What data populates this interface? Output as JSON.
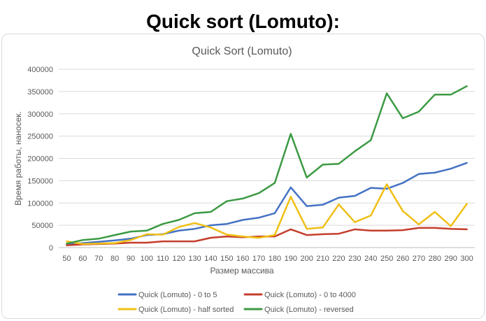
{
  "page": {
    "heading": "Quick sort (Lomuto):"
  },
  "chart_data": {
    "type": "line",
    "title": "Quick Sort (Lomuto)",
    "xlabel": "Размер массива",
    "ylabel": "Время работы, наносек.",
    "ylim": [
      0,
      400000
    ],
    "yticks": [
      "0",
      "50000",
      "100000",
      "150000",
      "200000",
      "250000",
      "300000",
      "350000",
      "400000"
    ],
    "grid": true,
    "legend_position": "bottom",
    "categories": [
      "50",
      "60",
      "70",
      "80",
      "90",
      "100",
      "110",
      "120",
      "130",
      "140",
      "150",
      "160",
      "170",
      "180",
      "190",
      "200",
      "210",
      "220",
      "230",
      "240",
      "250",
      "260",
      "270",
      "280",
      "290",
      "300"
    ],
    "series": [
      {
        "name": "Quick (Lomuto) - 0 to 5",
        "color": "#4472c4",
        "values": [
          8000,
          10000,
          13000,
          16000,
          20000,
          28000,
          30000,
          38000,
          42000,
          50000,
          53000,
          62000,
          67000,
          77000,
          135000,
          93000,
          96000,
          112000,
          116000,
          134000,
          132000,
          145000,
          165000,
          168000,
          177000,
          190000
        ]
      },
      {
        "name": "Quick (Lomuto) - 0 to 4000",
        "color": "#c43e2c",
        "values": [
          5000,
          7000,
          8000,
          9000,
          11000,
          11000,
          14000,
          14000,
          14000,
          22000,
          25000,
          23000,
          25000,
          25000,
          41000,
          28000,
          30000,
          31000,
          41000,
          38000,
          38000,
          39000,
          44000,
          44000,
          42000,
          41000
        ]
      },
      {
        "name": "Quick (Lomuto) - half sorted",
        "color": "#f0bf14",
        "values": [
          14000,
          8000,
          9000,
          10000,
          17000,
          30000,
          29000,
          46000,
          55000,
          45000,
          29000,
          25000,
          22000,
          28000,
          114000,
          42000,
          45000,
          97000,
          57000,
          72000,
          142000,
          82000,
          52000,
          80000,
          48000,
          98000
        ]
      },
      {
        "name": "Quick (Lomuto) - reversed",
        "color": "#3c9a43",
        "values": [
          9000,
          17000,
          20000,
          28000,
          36000,
          38000,
          53000,
          62000,
          77000,
          80000,
          104000,
          110000,
          122000,
          145000,
          255000,
          157000,
          186000,
          188000,
          216000,
          241000,
          346000,
          290000,
          305000,
          343000,
          343000,
          362000
        ]
      }
    ]
  }
}
